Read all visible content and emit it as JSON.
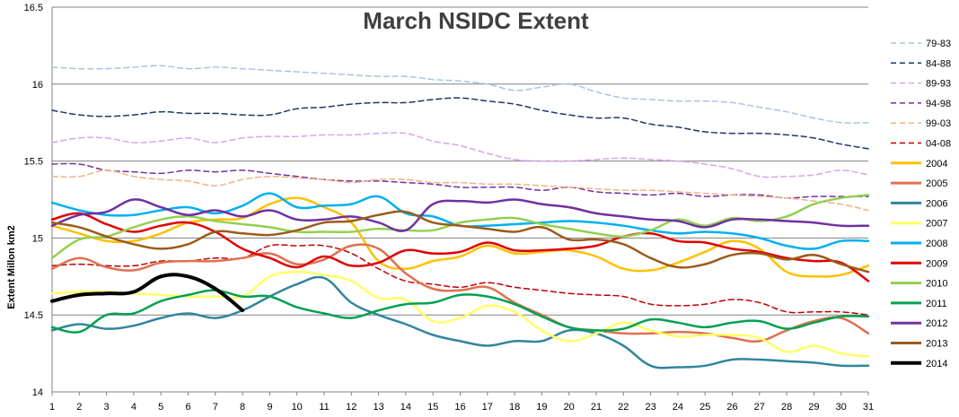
{
  "chart_data": {
    "type": "line",
    "title": "March NSIDC Extent",
    "xlabel": "",
    "ylabel": "Extent Millon km2",
    "x": [
      1,
      2,
      3,
      4,
      5,
      6,
      7,
      8,
      9,
      10,
      11,
      12,
      13,
      14,
      15,
      16,
      17,
      18,
      19,
      20,
      21,
      22,
      23,
      24,
      25,
      26,
      27,
      28,
      29,
      30,
      31
    ],
    "xlim": [
      1,
      31
    ],
    "ylim": [
      14,
      16.5
    ],
    "yticks": [
      "14",
      "14.5",
      "15",
      "15.5",
      "16",
      "16.5"
    ],
    "xticks": [
      "1",
      "2",
      "3",
      "4",
      "5",
      "6",
      "7",
      "8",
      "9",
      "10",
      "11",
      "12",
      "13",
      "14",
      "15",
      "16",
      "17",
      "18",
      "19",
      "20",
      "21",
      "22",
      "23",
      "24",
      "25",
      "26",
      "27",
      "28",
      "29",
      "30",
      "31"
    ],
    "grid": true,
    "legend_position": "right",
    "series": [
      {
        "name": "79-83",
        "color": "#A9C4E6",
        "dash": "6,4",
        "width": 1.5,
        "values": [
          16.11,
          16.1,
          16.1,
          16.11,
          16.12,
          16.1,
          16.11,
          16.1,
          16.09,
          16.08,
          16.07,
          16.06,
          16.05,
          16.05,
          16.03,
          16.02,
          16.0,
          15.96,
          15.98,
          16.0,
          15.95,
          15.91,
          15.9,
          15.89,
          15.89,
          15.88,
          15.85,
          15.82,
          15.78,
          15.75,
          15.75
        ]
      },
      {
        "name": "84-88",
        "color": "#1F3864",
        "dash": "6,4",
        "width": 1.5,
        "values": [
          15.83,
          15.8,
          15.79,
          15.8,
          15.82,
          15.81,
          15.81,
          15.8,
          15.8,
          15.84,
          15.85,
          15.87,
          15.88,
          15.88,
          15.9,
          15.91,
          15.89,
          15.87,
          15.83,
          15.8,
          15.78,
          15.78,
          15.74,
          15.72,
          15.69,
          15.68,
          15.68,
          15.67,
          15.65,
          15.61,
          15.58
        ]
      },
      {
        "name": "89-93",
        "color": "#D9A3F2",
        "dash": "6,4",
        "width": 1.5,
        "values": [
          15.62,
          15.65,
          15.65,
          15.62,
          15.63,
          15.65,
          15.62,
          15.65,
          15.66,
          15.66,
          15.67,
          15.67,
          15.68,
          15.68,
          15.63,
          15.6,
          15.55,
          15.51,
          15.5,
          15.5,
          15.51,
          15.52,
          15.51,
          15.5,
          15.48,
          15.45,
          15.4,
          15.4,
          15.41,
          15.44,
          15.41
        ]
      },
      {
        "name": "94-98",
        "color": "#7030A0",
        "dash": "6,4",
        "width": 1.5,
        "values": [
          15.48,
          15.48,
          15.44,
          15.43,
          15.42,
          15.44,
          15.43,
          15.44,
          15.42,
          15.4,
          15.38,
          15.37,
          15.37,
          15.36,
          15.35,
          15.33,
          15.33,
          15.33,
          15.31,
          15.33,
          15.3,
          15.29,
          15.28,
          15.29,
          15.27,
          15.28,
          15.28,
          15.26,
          15.27,
          15.27,
          15.27
        ]
      },
      {
        "name": "99-03",
        "color": "#F4B183",
        "dash": "6,4",
        "width": 1.5,
        "values": [
          15.4,
          15.4,
          15.44,
          15.4,
          15.38,
          15.37,
          15.34,
          15.38,
          15.4,
          15.39,
          15.38,
          15.36,
          15.38,
          15.38,
          15.36,
          15.36,
          15.35,
          15.35,
          15.34,
          15.33,
          15.32,
          15.31,
          15.31,
          15.3,
          15.29,
          15.28,
          15.27,
          15.26,
          15.24,
          15.22,
          15.18
        ]
      },
      {
        "name": "04-08",
        "color": "#C00000",
        "dash": "6,4",
        "width": 1.5,
        "values": [
          14.82,
          14.83,
          14.82,
          14.82,
          14.85,
          14.85,
          14.87,
          14.87,
          14.95,
          14.95,
          14.95,
          14.9,
          14.8,
          14.72,
          14.7,
          14.68,
          14.71,
          14.68,
          14.66,
          14.64,
          14.63,
          14.62,
          14.57,
          14.56,
          14.57,
          14.6,
          14.58,
          14.52,
          14.52,
          14.52,
          14.5
        ]
      },
      {
        "name": "2004",
        "color": "#FFC000",
        "dash": "",
        "width": 2.5,
        "values": [
          15.08,
          15.03,
          14.98,
          14.98,
          15.03,
          15.1,
          15.12,
          15.13,
          15.22,
          15.26,
          15.2,
          15.1,
          14.85,
          14.8,
          14.85,
          14.88,
          14.95,
          14.9,
          14.91,
          14.92,
          14.88,
          14.8,
          14.79,
          14.84,
          14.91,
          14.98,
          14.93,
          14.78,
          14.75,
          14.76,
          14.82
        ]
      },
      {
        "name": "2005",
        "color": "#E07050",
        "dash": "",
        "width": 2.5,
        "values": [
          14.8,
          14.87,
          14.81,
          14.79,
          14.84,
          14.85,
          14.85,
          14.87,
          14.9,
          14.83,
          14.86,
          14.95,
          14.93,
          14.77,
          14.67,
          14.66,
          14.68,
          14.58,
          14.5,
          14.42,
          14.4,
          14.38,
          14.38,
          14.39,
          14.38,
          14.35,
          14.33,
          14.4,
          14.46,
          14.48,
          14.38
        ]
      },
      {
        "name": "2006",
        "color": "#31859C",
        "dash": "",
        "width": 2.5,
        "values": [
          14.4,
          14.44,
          14.41,
          14.43,
          14.48,
          14.51,
          14.48,
          14.53,
          14.62,
          14.7,
          14.74,
          14.58,
          14.5,
          14.44,
          14.37,
          14.33,
          14.3,
          14.33,
          14.33,
          14.4,
          14.38,
          14.3,
          14.17,
          14.16,
          14.17,
          14.21,
          14.21,
          14.2,
          14.19,
          14.17,
          14.17
        ]
      },
      {
        "name": "2007",
        "color": "#FFFF66",
        "dash": "",
        "width": 2.5,
        "values": [
          14.64,
          14.65,
          14.65,
          14.64,
          14.63,
          14.62,
          14.62,
          14.62,
          14.75,
          14.78,
          14.76,
          14.72,
          14.61,
          14.6,
          14.46,
          14.48,
          14.56,
          14.52,
          14.4,
          14.33,
          14.38,
          14.45,
          14.4,
          14.36,
          14.37,
          14.37,
          14.35,
          14.26,
          14.3,
          14.25,
          14.23
        ]
      },
      {
        "name": "2008",
        "color": "#00B0F0",
        "dash": "",
        "width": 2.5,
        "values": [
          15.23,
          15.18,
          15.15,
          15.15,
          15.18,
          15.2,
          15.16,
          15.21,
          15.29,
          15.2,
          15.21,
          15.22,
          15.27,
          15.16,
          15.14,
          15.08,
          15.08,
          15.09,
          15.1,
          15.11,
          15.1,
          15.08,
          15.05,
          15.03,
          15.04,
          15.03,
          15.0,
          14.95,
          14.93,
          14.98,
          14.98
        ]
      },
      {
        "name": "2009",
        "color": "#E00000",
        "dash": "",
        "width": 2.5,
        "values": [
          15.12,
          15.16,
          15.09,
          15.04,
          15.08,
          15.1,
          15.04,
          14.93,
          14.87,
          14.81,
          14.88,
          14.82,
          14.84,
          14.92,
          14.9,
          14.91,
          14.97,
          14.92,
          14.92,
          14.93,
          14.95,
          15.01,
          15.03,
          14.98,
          14.97,
          14.93,
          14.91,
          14.87,
          14.85,
          14.84,
          14.72
        ]
      },
      {
        "name": "2010",
        "color": "#92D050",
        "dash": "",
        "width": 2.5,
        "values": [
          14.87,
          14.99,
          15.01,
          15.07,
          15.12,
          15.14,
          15.11,
          15.09,
          15.07,
          15.04,
          15.04,
          15.04,
          15.06,
          15.05,
          15.05,
          15.1,
          15.12,
          15.13,
          15.09,
          15.06,
          15.03,
          15.01,
          15.05,
          15.12,
          15.08,
          15.13,
          15.11,
          15.14,
          15.22,
          15.26,
          15.28
        ]
      },
      {
        "name": "2011",
        "color": "#00A050",
        "dash": "",
        "width": 2.5,
        "values": [
          14.42,
          14.39,
          14.5,
          14.51,
          14.59,
          14.63,
          14.66,
          14.62,
          14.62,
          14.55,
          14.51,
          14.48,
          14.53,
          14.57,
          14.58,
          14.63,
          14.62,
          14.57,
          14.49,
          14.42,
          14.4,
          14.41,
          14.47,
          14.45,
          14.42,
          14.45,
          14.46,
          14.41,
          14.45,
          14.49,
          14.49
        ]
      },
      {
        "name": "2012",
        "color": "#7030A0",
        "dash": "",
        "width": 2.5,
        "values": [
          15.08,
          15.15,
          15.17,
          15.25,
          15.2,
          15.15,
          15.18,
          15.14,
          15.18,
          15.12,
          15.12,
          15.14,
          15.1,
          15.05,
          15.22,
          15.24,
          15.23,
          15.25,
          15.22,
          15.2,
          15.16,
          15.14,
          15.12,
          15.11,
          15.07,
          15.12,
          15.12,
          15.11,
          15.1,
          15.08,
          15.08
        ]
      },
      {
        "name": "2013",
        "color": "#9C5A1A",
        "dash": "",
        "width": 2.5,
        "values": [
          15.1,
          15.07,
          15.01,
          14.96,
          14.93,
          14.96,
          15.04,
          15.03,
          15.02,
          15.05,
          15.1,
          15.11,
          15.15,
          15.17,
          15.1,
          15.08,
          15.06,
          15.04,
          15.07,
          14.99,
          14.99,
          14.96,
          14.87,
          14.81,
          14.83,
          14.89,
          14.9,
          14.86,
          14.89,
          14.83,
          14.78
        ]
      },
      {
        "name": "2014",
        "color": "#000000",
        "dash": "",
        "width": 4,
        "values": [
          14.59,
          14.63,
          14.64,
          14.65,
          14.75,
          14.75,
          14.67,
          14.53,
          null,
          null,
          null,
          null,
          null,
          null,
          null,
          null,
          null,
          null,
          null,
          null,
          null,
          null,
          null,
          null,
          null,
          null,
          null,
          null,
          null,
          null,
          null
        ]
      }
    ]
  }
}
